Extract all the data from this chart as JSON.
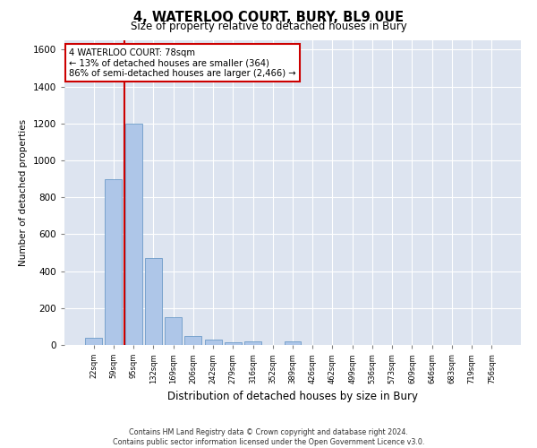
{
  "title": "4, WATERLOO COURT, BURY, BL9 0UE",
  "subtitle": "Size of property relative to detached houses in Bury",
  "xlabel": "Distribution of detached houses by size in Bury",
  "ylabel": "Number of detached properties",
  "footer_line1": "Contains HM Land Registry data © Crown copyright and database right 2024.",
  "footer_line2": "Contains public sector information licensed under the Open Government Licence v3.0.",
  "annotation_text": "4 WATERLOO COURT: 78sqm\n← 13% of detached houses are smaller (364)\n86% of semi-detached houses are larger (2,466) →",
  "bar_categories": [
    "22sqm",
    "59sqm",
    "95sqm",
    "132sqm",
    "169sqm",
    "206sqm",
    "242sqm",
    "279sqm",
    "316sqm",
    "352sqm",
    "389sqm",
    "426sqm",
    "462sqm",
    "499sqm",
    "536sqm",
    "573sqm",
    "609sqm",
    "646sqm",
    "683sqm",
    "719sqm",
    "756sqm"
  ],
  "bar_values": [
    40,
    900,
    1200,
    470,
    150,
    50,
    30,
    15,
    20,
    0,
    20,
    0,
    0,
    0,
    0,
    0,
    0,
    0,
    0,
    0,
    0
  ],
  "bar_color": "#aec6e8",
  "bar_edge_color": "#5a8fc0",
  "vline_color": "#cc0000",
  "annotation_box_color": "#cc0000",
  "background_color": "#dde4f0",
  "ylim": [
    0,
    1650
  ],
  "yticks": [
    0,
    200,
    400,
    600,
    800,
    1000,
    1200,
    1400,
    1600
  ],
  "vline_pos": 1.53
}
